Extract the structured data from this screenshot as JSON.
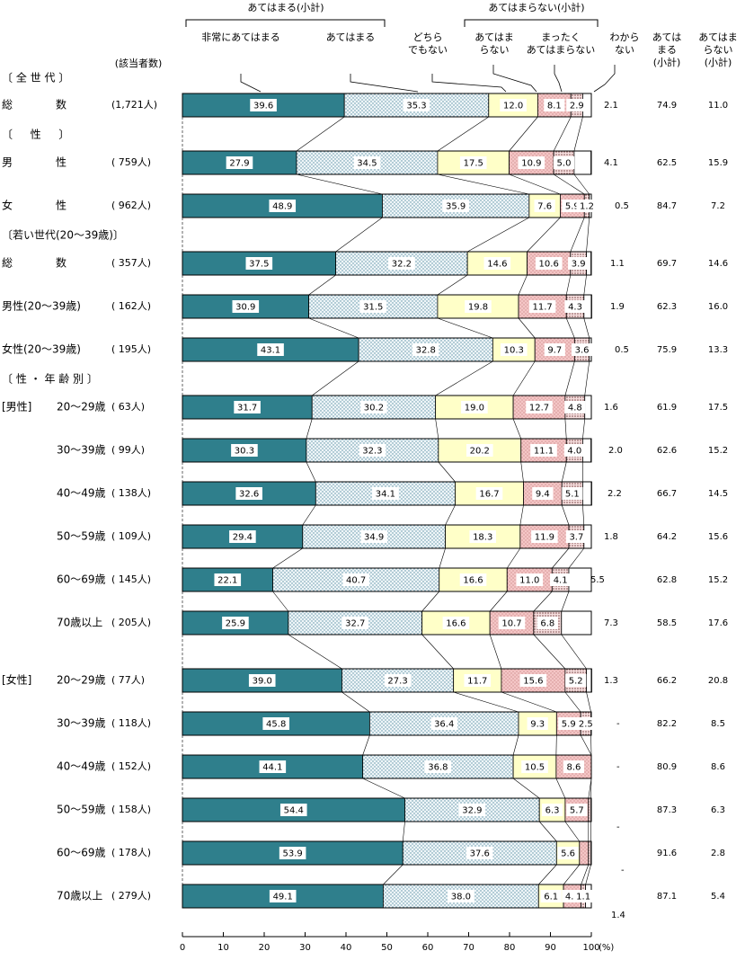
{
  "chart_data": {
    "type": "bar",
    "orientation": "horizontal",
    "stacked": true,
    "x_unit": "(%)",
    "x_ticks": [
      0,
      10,
      20,
      30,
      40,
      50,
      60,
      70,
      80,
      90,
      100
    ],
    "xlim": [
      0,
      100
    ],
    "header": {
      "group_apply": "あてはまる(小計)",
      "group_not_apply": "あてはまらない(小計)",
      "count_header": "(該当者数)",
      "col_apply_total": [
        "あては",
        "まる",
        "(小計)"
      ],
      "col_not_total": [
        "あてはま",
        "らない",
        "(小計)"
      ]
    },
    "series": [
      {
        "name": "非常にあてはまる",
        "lines": [
          "非常にあてはまる"
        ],
        "color": "#2f7f8c"
      },
      {
        "name": "あてはまる",
        "lines": [
          "あてはまる"
        ],
        "color": "#e8f1f5"
      },
      {
        "name": "どちらでもない",
        "lines": [
          "どちら",
          "でもない"
        ],
        "color": "#ffffc8"
      },
      {
        "name": "あてはまらない",
        "lines": [
          "あてはま",
          "らない"
        ],
        "color": "#f2bcbc"
      },
      {
        "name": "まったくあてはまらない",
        "lines": [
          "まったく",
          "あてはまらない"
        ],
        "color": "#f7d9d9"
      },
      {
        "name": "わからない",
        "lines": [
          "わから",
          "ない"
        ],
        "color": "#ffffff"
      }
    ],
    "sections": [
      {
        "label": "〔 全 世 代 〕",
        "rows": [
          {
            "label": "総　　　　数",
            "n": "(1,721人)",
            "values": [
              39.6,
              35.3,
              12.0,
              8.1,
              2.9,
              2.1
            ],
            "apply_total": "74.9",
            "not_total": "11.0"
          }
        ]
      },
      {
        "label": "〔 　 性 　 〕",
        "rows": [
          {
            "label": "男　　　　性",
            "n": "( 759人)",
            "values": [
              27.9,
              34.5,
              17.5,
              10.9,
              5.0,
              4.1
            ],
            "apply_total": "62.5",
            "not_total": "15.9"
          },
          {
            "label": "女　　　　性",
            "n": "( 962人)",
            "values": [
              48.9,
              35.9,
              7.6,
              5.9,
              1.2,
              0.5
            ],
            "apply_total": "84.7",
            "not_total": "7.2"
          }
        ]
      },
      {
        "label": "〔若い世代(20～39歳)〕",
        "rows": [
          {
            "label": "総　　　　数",
            "n": "( 357人)",
            "values": [
              37.5,
              32.2,
              14.6,
              10.6,
              3.9,
              1.1
            ],
            "apply_total": "69.7",
            "not_total": "14.6"
          },
          {
            "label": "男性(20～39歳)",
            "n": "( 162人)",
            "values": [
              30.9,
              31.5,
              19.8,
              11.7,
              4.3,
              1.9
            ],
            "apply_total": "62.3",
            "not_total": "16.0"
          },
          {
            "label": "女性(20～39歳)",
            "n": "( 195人)",
            "values": [
              43.1,
              32.8,
              10.3,
              9.7,
              3.6,
              0.5
            ],
            "apply_total": "75.9",
            "not_total": "13.3"
          }
        ]
      },
      {
        "label": "〔 性 ・ 年 齢 別 〕",
        "rows": [
          {
            "group": "[男性]",
            "label": "20～29歳",
            "n": "( 63人)",
            "values": [
              31.7,
              30.2,
              19.0,
              12.7,
              4.8,
              1.6
            ],
            "apply_total": "61.9",
            "not_total": "17.5"
          },
          {
            "label": "30～39歳",
            "n": "( 99人)",
            "values": [
              30.3,
              32.3,
              20.2,
              11.1,
              4.0,
              2.0
            ],
            "apply_total": "62.6",
            "not_total": "15.2"
          },
          {
            "label": "40～49歳",
            "n": "( 138人)",
            "values": [
              32.6,
              34.1,
              16.7,
              9.4,
              5.1,
              2.2
            ],
            "apply_total": "66.7",
            "not_total": "14.5"
          },
          {
            "label": "50～59歳",
            "n": "( 109人)",
            "values": [
              29.4,
              34.9,
              18.3,
              11.9,
              3.7,
              1.8
            ],
            "apply_total": "64.2",
            "not_total": "15.6"
          },
          {
            "label": "60～69歳",
            "n": "( 145人)",
            "values": [
              22.1,
              40.7,
              16.6,
              11.0,
              4.1,
              5.5
            ],
            "apply_total": "62.8",
            "not_total": "15.2"
          },
          {
            "label": "70歳以上",
            "n": "( 205人)",
            "values": [
              25.9,
              32.7,
              16.6,
              10.7,
              6.8,
              7.3
            ],
            "apply_total": "58.5",
            "not_total": "17.6"
          },
          {
            "group": "[女性]",
            "label": "20～29歳",
            "n": "( 77人)",
            "values": [
              39.0,
              27.3,
              11.7,
              15.6,
              5.2,
              1.3
            ],
            "apply_total": "66.2",
            "not_total": "20.8"
          },
          {
            "label": "30～39歳",
            "n": "( 118人)",
            "values": [
              45.8,
              36.4,
              9.3,
              5.9,
              2.5,
              0
            ],
            "apply_total": "82.2",
            "not_total": "8.5"
          },
          {
            "label": "40～49歳",
            "n": "( 152人)",
            "values": [
              44.1,
              36.8,
              10.5,
              8.6,
              0,
              0
            ],
            "apply_total": "80.9",
            "not_total": "8.6"
          },
          {
            "label": "50～59歳",
            "n": "( 158人)",
            "values": [
              54.4,
              32.9,
              6.3,
              5.7,
              0.6,
              0
            ],
            "apply_total": "87.3",
            "not_total": "6.3"
          },
          {
            "label": "60～69歳",
            "n": "( 178人)",
            "values": [
              53.9,
              37.6,
              5.6,
              2.2,
              0.6,
              0
            ],
            "apply_total": "91.6",
            "not_total": "2.8"
          },
          {
            "label": "70歳以上",
            "n": "( 279人)",
            "values": [
              49.1,
              38.0,
              6.1,
              4.3,
              1.1,
              1.4
            ],
            "apply_total": "87.1",
            "not_total": "5.4"
          }
        ]
      }
    ]
  }
}
